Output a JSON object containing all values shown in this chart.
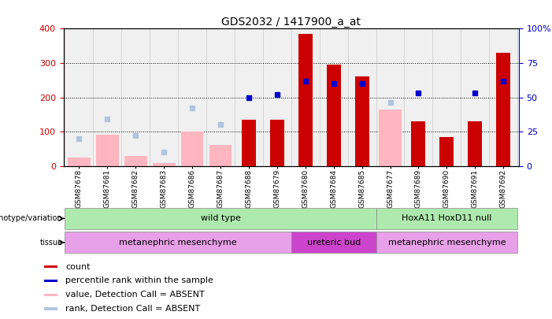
{
  "title": "GDS2032 / 1417900_a_at",
  "samples": [
    "GSM87678",
    "GSM87681",
    "GSM87682",
    "GSM87683",
    "GSM87686",
    "GSM87687",
    "GSM87688",
    "GSM87679",
    "GSM87680",
    "GSM87684",
    "GSM87685",
    "GSM87677",
    "GSM87689",
    "GSM87690",
    "GSM87691",
    "GSM87692"
  ],
  "count": [
    null,
    null,
    null,
    null,
    null,
    null,
    135,
    135,
    385,
    295,
    260,
    null,
    130,
    85,
    130,
    330
  ],
  "percentile_rank_right": [
    null,
    null,
    null,
    null,
    null,
    null,
    50,
    52,
    62,
    60,
    60,
    null,
    53,
    null,
    53,
    62
  ],
  "value_absent": [
    25,
    90,
    30,
    8,
    100,
    60,
    null,
    null,
    null,
    null,
    null,
    165,
    null,
    null,
    null,
    null
  ],
  "rank_absent_right": [
    20,
    34,
    22,
    10,
    42,
    30,
    null,
    null,
    null,
    null,
    null,
    46,
    null,
    null,
    null,
    null
  ],
  "ylim_left": [
    0,
    400
  ],
  "ylim_right": [
    0,
    100
  ],
  "yticks_left": [
    0,
    100,
    200,
    300,
    400
  ],
  "yticks_right": [
    0,
    25,
    50,
    75,
    100
  ],
  "ytick_right_labels": [
    "0",
    "25",
    "50",
    "75",
    "100%"
  ],
  "genotype_groups": [
    {
      "label": "wild type",
      "start": 0,
      "end": 11,
      "color": "#aeeaae"
    },
    {
      "label": "HoxA11 HoxD11 null",
      "start": 11,
      "end": 16,
      "color": "#aeeaae"
    }
  ],
  "tissue_groups": [
    {
      "label": "metanephric mesenchyme",
      "start": 0,
      "end": 8,
      "color": "#e8a0e8"
    },
    {
      "label": "ureteric bud",
      "start": 8,
      "end": 11,
      "color": "#cc44cc"
    },
    {
      "label": "metanephric mesenchyme",
      "start": 11,
      "end": 16,
      "color": "#e8a0e8"
    }
  ],
  "color_count": "#CC0000",
  "color_percentile": "#0000CC",
  "color_value_absent": "#FFB6C1",
  "color_rank_absent": "#B0C4DE",
  "bar_width": 0.5,
  "background_plot": "#F0F0F0",
  "ylabel_left_color": "#CC0000",
  "ylabel_right_color": "#0000CC"
}
